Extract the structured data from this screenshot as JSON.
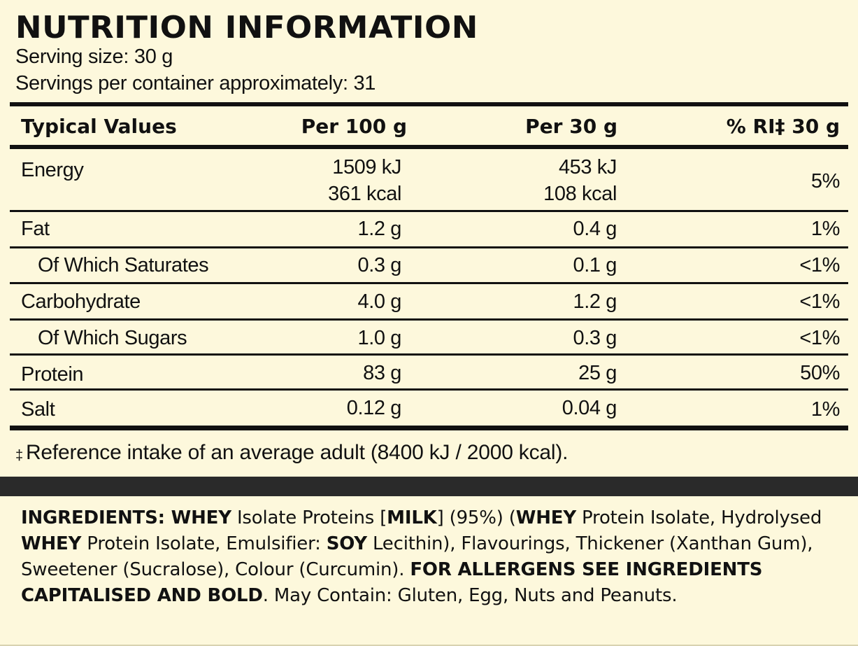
{
  "header": {
    "title": "NUTRITION INFORMATION",
    "serving_size": "Serving size: 30 g",
    "servings_per_container": "Servings per container approximately: 31"
  },
  "table": {
    "columns": [
      "Typical Values",
      "Per 100 g",
      "Per 30 g",
      "% RI‡ 30 g"
    ],
    "rows": [
      {
        "name": "Energy",
        "per100": "1509 kJ",
        "per100_2": "361 kcal",
        "per30": "453 kJ",
        "per30_2": "108 kcal",
        "ri": "5%"
      },
      {
        "name": "Fat",
        "per100": "1.2 g",
        "per30": "0.4 g",
        "ri": "1%"
      },
      {
        "name": "Of Which Saturates",
        "per100": "0.3 g",
        "per30": "0.1 g",
        "ri": "<1%"
      },
      {
        "name": "Carbohydrate",
        "per100": "4.0 g",
        "per30": "1.2 g",
        "ri": "<1%"
      },
      {
        "name": "Of Which Sugars",
        "per100": "1.0 g",
        "per30": "0.3 g",
        "ri": "<1%"
      },
      {
        "name": "Protein",
        "per100": "83 g",
        "per30": "25 g",
        "ri": "50%"
      },
      {
        "name": "Salt",
        "per100": "0.12 g",
        "per30": "0.04 g",
        "ri": "1%"
      }
    ]
  },
  "footnote": {
    "symbol": "‡",
    "text": "Reference intake of an average adult (8400 kJ / 2000 kcal)."
  },
  "ingredients": {
    "parts": [
      {
        "text": "INGREDIENTS: WHEY",
        "bold": true
      },
      {
        "text": " Isolate Proteins [",
        "bold": false
      },
      {
        "text": "MILK",
        "bold": true
      },
      {
        "text": "] (95%) (",
        "bold": false
      },
      {
        "text": "WHEY",
        "bold": true
      },
      {
        "text": " Protein Isolate, Hydrolysed ",
        "bold": false
      },
      {
        "text": "WHEY",
        "bold": true
      },
      {
        "text": " Protein Isolate, Emulsifier: ",
        "bold": false
      },
      {
        "text": "SOY",
        "bold": true
      },
      {
        "text": " Lecithin), Flavourings, Thickener (Xanthan Gum), Sweetener (Sucralose), Colour (Curcumin). ",
        "bold": false
      },
      {
        "text": "FOR ALLERGENS SEE INGREDIENTS CAPITALISED AND BOLD",
        "bold": true
      },
      {
        "text": ". May Contain: Gluten, Egg, Nuts and Peanuts.",
        "bold": false
      }
    ]
  },
  "colors": {
    "background": "#fdf8dc",
    "ink": "#111111",
    "band": "#2a2a2a"
  }
}
